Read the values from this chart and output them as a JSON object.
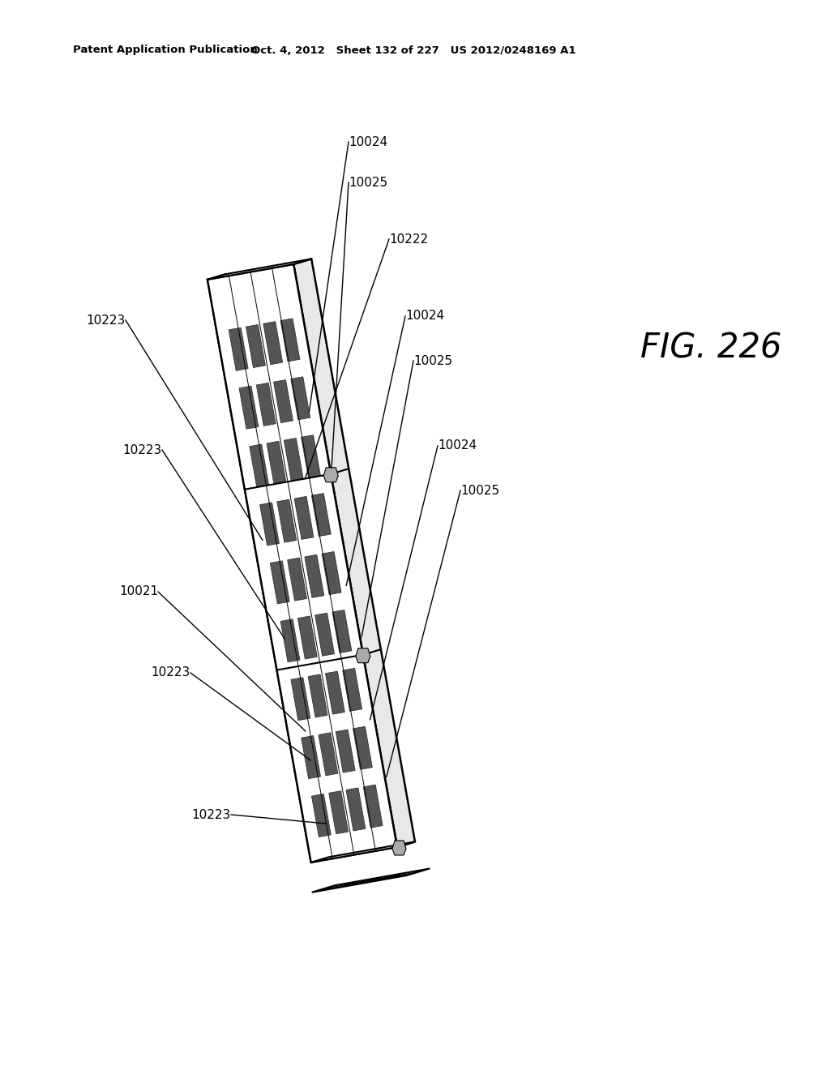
{
  "background_color": "#ffffff",
  "header_left": "Patent Application Publication",
  "header_center": "Oct. 4, 2012   Sheet 132 of 227   US 2012/0248169 A1",
  "figure_label": "FIG. 226",
  "labels": {
    "10024_1": "10024",
    "10025_1": "10025",
    "10222": "10222",
    "10024_2": "10024",
    "10025_2": "10025",
    "10024_3": "10024",
    "10025_3": "10025",
    "10223_1": "10223",
    "10223_2": "10223",
    "10021": "10021",
    "10223_3": "10223",
    "10223_4": "10223"
  },
  "line_color": "#000000",
  "line_width": 1.5
}
